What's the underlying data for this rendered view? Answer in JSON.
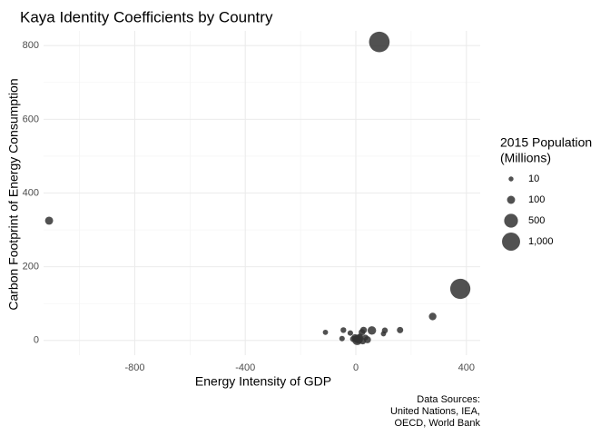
{
  "chart_data": {
    "type": "scatter",
    "title": "Kaya Identity Coefficients by Country",
    "xlabel": "Energy Intensity of GDP",
    "ylabel": "Carbon Footprint of Energy Consumption",
    "xlim": [
      -1130,
      450
    ],
    "ylim": [
      -40,
      840
    ],
    "x_ticks": [
      -800,
      -400,
      0,
      400
    ],
    "x_tick_labels": [
      "-800",
      "-400",
      "0",
      "400"
    ],
    "y_ticks": [
      0,
      200,
      400,
      600,
      800
    ],
    "y_tick_labels": [
      "0",
      "200",
      "400",
      "600",
      "800"
    ],
    "grid": true,
    "size_legend": {
      "title_lines": [
        "2015 Population",
        "(Millions)"
      ],
      "entries": [
        {
          "label": "10",
          "value": 10
        },
        {
          "label": "100",
          "value": 100
        },
        {
          "label": "500",
          "value": 500
        },
        {
          "label": "1,000",
          "value": 1000
        }
      ],
      "position": "right"
    },
    "caption_lines": [
      "Data Sources:",
      "United Nations, IEA,",
      "OECD, World Bank"
    ],
    "point_color": "#333333",
    "point_opacity": 0.85,
    "points": [
      {
        "x": 85,
        "y": 810,
        "pop": 1370
      },
      {
        "x": -1110,
        "y": 325,
        "pop": 100
      },
      {
        "x": 378,
        "y": 140,
        "pop": 1310
      },
      {
        "x": 278,
        "y": 65,
        "pop": 80
      },
      {
        "x": 160,
        "y": 28,
        "pop": 40
      },
      {
        "x": 105,
        "y": 27,
        "pop": 30
      },
      {
        "x": 100,
        "y": 18,
        "pop": 15
      },
      {
        "x": 58,
        "y": 27,
        "pop": 120
      },
      {
        "x": 35,
        "y": 8,
        "pop": 25
      },
      {
        "x": 42,
        "y": 2,
        "pop": 60
      },
      {
        "x": 28,
        "y": 28,
        "pop": 50
      },
      {
        "x": 22,
        "y": 22,
        "pop": 45
      },
      {
        "x": 15,
        "y": 10,
        "pop": 35
      },
      {
        "x": 10,
        "y": 4,
        "pop": 150
      },
      {
        "x": 5,
        "y": 1,
        "pop": 200
      },
      {
        "x": 2,
        "y": 3,
        "pop": 60
      },
      {
        "x": -3,
        "y": 8,
        "pop": 50
      },
      {
        "x": -10,
        "y": 4,
        "pop": 30
      },
      {
        "x": -20,
        "y": 20,
        "pop": 20
      },
      {
        "x": -45,
        "y": 28,
        "pop": 25
      },
      {
        "x": -50,
        "y": 5,
        "pop": 20
      },
      {
        "x": -110,
        "y": 22,
        "pop": 15
      },
      {
        "x": 25,
        "y": -2,
        "pop": 40
      }
    ]
  }
}
